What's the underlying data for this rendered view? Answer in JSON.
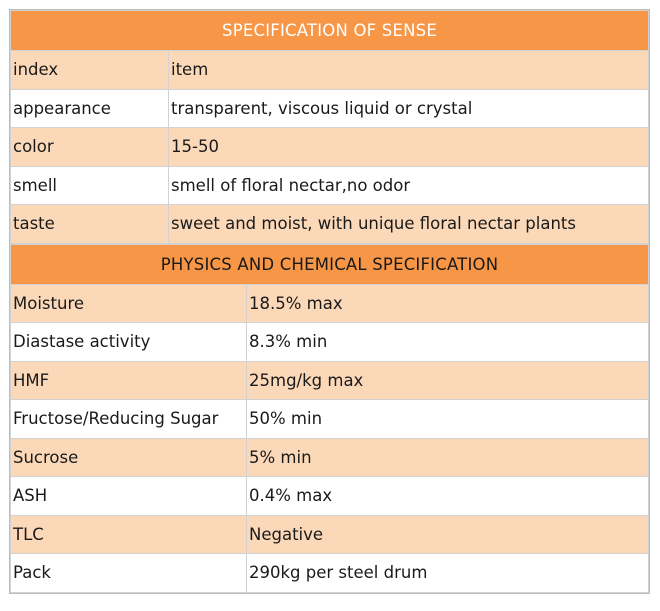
{
  "sense": {
    "title": "SPECIFICATION OF SENSE",
    "rows": [
      {
        "label": "index",
        "value": "item"
      },
      {
        "label": "appearance",
        "value": "transparent, viscous liquid or crystal"
      },
      {
        "label": "color",
        "value": "15-50"
      },
      {
        "label": "smell",
        "value": "smell of floral nectar,no odor"
      },
      {
        "label": "taste",
        "value": "sweet and moist, with unique floral nectar plants"
      }
    ]
  },
  "physics": {
    "title": "PHYSICS AND CHEMICAL SPECIFICATION",
    "rows": [
      {
        "label": "Moisture",
        "value": "18.5% max"
      },
      {
        "label": "Diastase activity",
        "value": "8.3% min"
      },
      {
        "label": "HMF",
        "value": "25mg/kg max"
      },
      {
        "label": "Fructose/Reducing Sugar",
        "value": "50% min"
      },
      {
        "label": "Sucrose",
        "value": "5% min"
      },
      {
        "label": "ASH",
        "value": "0.4% max"
      },
      {
        "label": "TLC",
        "value": "Negative"
      },
      {
        "label": "Pack",
        "value": "290kg per steel drum"
      }
    ]
  },
  "colors": {
    "header_bg": "#f79646",
    "row_light": "#fbd8b8",
    "row_white": "#ffffff"
  }
}
